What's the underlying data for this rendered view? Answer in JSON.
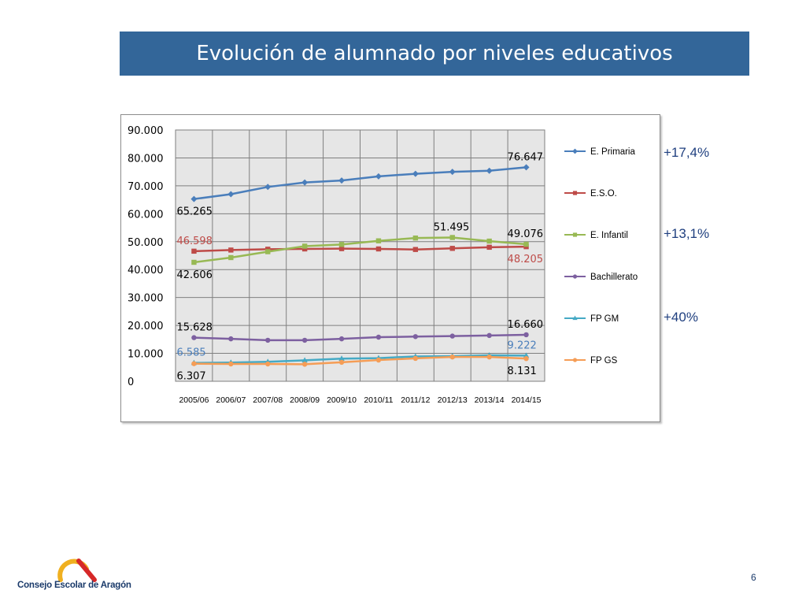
{
  "title": "Evolución de alumnado por niveles educativos",
  "percent_notes": [
    "+17,4%",
    "+13,1%",
    "+40%"
  ],
  "logo_text": "Consejo Escolar de Aragón",
  "page_number": "6",
  "colors": {
    "title_bg": "#336699",
    "primaria": "#4a7ebb",
    "eso": "#be4b48",
    "infantil": "#98b954",
    "bachillerato": "#7d60a0",
    "fpgm": "#46aac5",
    "fpgs": "#f59d56",
    "logo_orange": "#f0b020",
    "logo_red": "#d62828"
  },
  "chart_data": {
    "type": "line",
    "categories": [
      "2005/06",
      "2006/07",
      "2007/08",
      "2008/09",
      "2009/10",
      "2010/11",
      "2011/12",
      "2012/13",
      "2013/14",
      "2014/15"
    ],
    "y_ticks": [
      "0",
      "10.000",
      "20.000",
      "30.000",
      "40.000",
      "50.000",
      "60.000",
      "70.000",
      "80.000",
      "90.000"
    ],
    "ylim": [
      0,
      90000
    ],
    "grid": true,
    "legend_position": "right",
    "series": [
      {
        "name": "E. Primaria",
        "marker": "diamond",
        "color": "#4a7ebb",
        "values": [
          65265,
          67000,
          69600,
          71200,
          71900,
          73400,
          74300,
          75000,
          75400,
          76647
        ]
      },
      {
        "name": "E.S.O.",
        "marker": "square",
        "color": "#be4b48",
        "values": [
          46598,
          47000,
          47300,
          47400,
          47500,
          47400,
          47200,
          47600,
          48000,
          48205
        ]
      },
      {
        "name": "E. Infantil",
        "marker": "square",
        "color": "#98b954",
        "values": [
          42606,
          44300,
          46400,
          48400,
          49000,
          50300,
          51300,
          51495,
          50200,
          49076
        ]
      },
      {
        "name": "Bachillerato",
        "marker": "circle",
        "color": "#7d60a0",
        "values": [
          15628,
          15200,
          14700,
          14700,
          15200,
          15800,
          16000,
          16200,
          16400,
          16660
        ]
      },
      {
        "name": "FP GM",
        "marker": "triangle",
        "color": "#46aac5",
        "values": [
          6585,
          6700,
          7000,
          7500,
          8100,
          8300,
          8900,
          9000,
          9300,
          9222
        ]
      },
      {
        "name": "FP GS",
        "marker": "circle",
        "color": "#f59d56",
        "values": [
          6307,
          6200,
          6200,
          6100,
          6800,
          7600,
          8200,
          8700,
          8700,
          8131
        ]
      }
    ],
    "data_labels": [
      {
        "text": "76.647",
        "series": 0,
        "index": 9,
        "color": "#000000",
        "position": "above"
      },
      {
        "text": "65.265",
        "series": 0,
        "index": 0,
        "color": "#000000",
        "position": "below"
      },
      {
        "text": "46.598",
        "series": 1,
        "index": 0,
        "color": "#be4b48",
        "position": "above"
      },
      {
        "text": "48.205",
        "series": 1,
        "index": 9,
        "color": "#be4b48",
        "position": "below"
      },
      {
        "text": "42.606",
        "series": 2,
        "index": 0,
        "color": "#000000",
        "position": "below"
      },
      {
        "text": "51.495",
        "series": 2,
        "index": 7,
        "color": "#000000",
        "position": "above"
      },
      {
        "text": "49.076",
        "series": 2,
        "index": 9,
        "color": "#000000",
        "position": "above"
      },
      {
        "text": "15.628",
        "series": 3,
        "index": 0,
        "color": "#000000",
        "position": "above"
      },
      {
        "text": "16.660",
        "series": 3,
        "index": 9,
        "color": "#000000",
        "position": "above"
      },
      {
        "text": "6.585",
        "series": 4,
        "index": 0,
        "color": "#4a7ebb",
        "position": "above"
      },
      {
        "text": "9.222",
        "series": 4,
        "index": 9,
        "color": "#4a7ebb",
        "position": "above"
      },
      {
        "text": "6.307",
        "series": 5,
        "index": 0,
        "color": "#000000",
        "position": "below"
      },
      {
        "text": "8.131",
        "series": 5,
        "index": 9,
        "color": "#000000",
        "position": "below"
      }
    ]
  }
}
